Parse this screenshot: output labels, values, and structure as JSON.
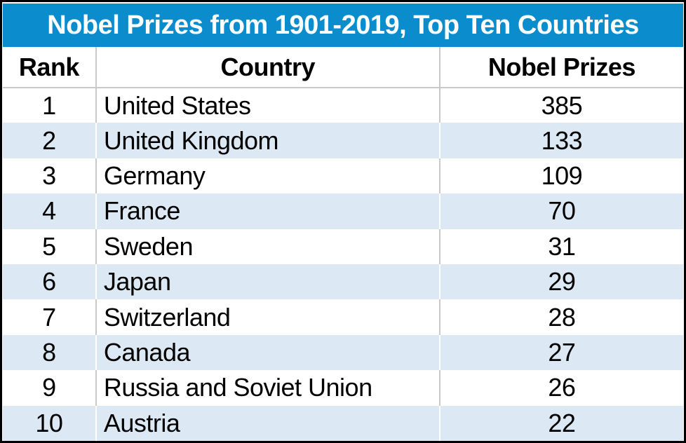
{
  "title": "Nobel Prizes from 1901-2019, Top Ten Countries",
  "colors": {
    "title_bg": "#0a8ccd",
    "title_text": "#ffffff",
    "stripe": "#dce9f4",
    "grid": "#c9c9c9",
    "border": "#000000",
    "text": "#000000"
  },
  "table": {
    "headers": [
      "Rank",
      "Country",
      "Nobel Prizes"
    ],
    "rows": [
      {
        "rank": "1",
        "country": "United States",
        "prizes": "385"
      },
      {
        "rank": "2",
        "country": "United Kingdom",
        "prizes": "133"
      },
      {
        "rank": "3",
        "country": "Germany",
        "prizes": "109"
      },
      {
        "rank": "4",
        "country": "France",
        "prizes": "70"
      },
      {
        "rank": "5",
        "country": "Sweden",
        "prizes": "31"
      },
      {
        "rank": "6",
        "country": "Japan",
        "prizes": "29"
      },
      {
        "rank": "7",
        "country": "Switzerland",
        "prizes": "28"
      },
      {
        "rank": "8",
        "country": "Canada",
        "prizes": "27"
      },
      {
        "rank": "9",
        "country": "Russia and Soviet Union",
        "prizes": "26"
      },
      {
        "rank": "10",
        "country": "Austria",
        "prizes": "22"
      }
    ]
  },
  "chart_data": {
    "type": "table",
    "title": "Nobel Prizes from 1901-2019, Top Ten Countries",
    "columns": [
      "Rank",
      "Country",
      "Nobel Prizes"
    ],
    "rows": [
      [
        1,
        "United States",
        385
      ],
      [
        2,
        "United Kingdom",
        133
      ],
      [
        3,
        "Germany",
        109
      ],
      [
        4,
        "France",
        70
      ],
      [
        5,
        "Sweden",
        31
      ],
      [
        6,
        "Japan",
        29
      ],
      [
        7,
        "Switzerland",
        28
      ],
      [
        8,
        "Canada",
        27
      ],
      [
        9,
        "Russia and Soviet Union",
        26
      ],
      [
        10,
        "Austria",
        22
      ]
    ]
  }
}
